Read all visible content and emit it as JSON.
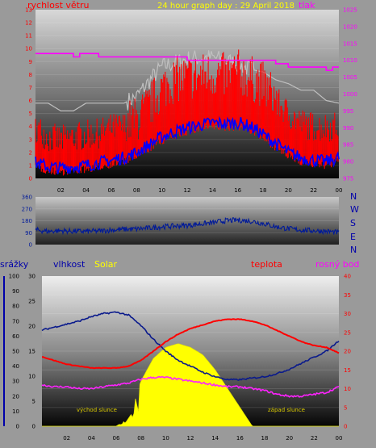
{
  "colors": {
    "wind": "#ff0000",
    "gust": "#0000ff",
    "pressure": "#ff00ff",
    "history": "#c0c0c0",
    "direction": "#001a99",
    "humidity": "#0a1a8c",
    "temperature": "#ff0000",
    "dewpoint": "#ff22ff",
    "solar": "#ffff00",
    "rain_axis": "#0000aa",
    "title": "#ffff00",
    "sun_label": "#d8c800",
    "compass": "#0000aa",
    "tick_dark": "#000000"
  },
  "chart_data": [
    {
      "type": "line",
      "title": "24 hour graph day : 29 April 2018",
      "left_label": "rychlost větru",
      "right_label": "tlak",
      "x_ticks": [
        "02",
        "04",
        "06",
        "08",
        "10",
        "12",
        "14",
        "16",
        "18",
        "20",
        "22",
        "00"
      ],
      "x": [
        0,
        1,
        2,
        3,
        4,
        5,
        6,
        7,
        8,
        9,
        10,
        11,
        12,
        13,
        14,
        15,
        16,
        17,
        18,
        19,
        20,
        21,
        22,
        23,
        24
      ],
      "y_left_range": [
        0,
        13
      ],
      "y_left_ticks": [
        "0",
        "1",
        "2",
        "3",
        "4",
        "5",
        "6",
        "7",
        "8",
        "9",
        "10",
        "11",
        "12",
        "13"
      ],
      "y_right_range": [
        975,
        1025
      ],
      "y_right_ticks": [
        "975",
        "980",
        "985",
        "990",
        "995",
        "1000",
        "1005",
        "1010",
        "1015",
        "1020",
        "1025"
      ],
      "grid": true,
      "series": [
        {
          "key": "wind_max",
          "axis": "left",
          "values": [
            3.5,
            2.7,
            2.5,
            2.7,
            2.9,
            3.0,
            3.4,
            3.5,
            3.8,
            4.8,
            6.2,
            6.9,
            7.0,
            7.2,
            7.3,
            7.2,
            7.5,
            7.0,
            6.5,
            5.5,
            4.5,
            3.8,
            3.5,
            3.5,
            3.6
          ]
        },
        {
          "key": "wind_avg",
          "axis": "left",
          "values": [
            1.2,
            0.9,
            0.8,
            0.9,
            1.0,
            1.2,
            1.4,
            1.6,
            2.0,
            2.6,
            3.2,
            3.6,
            3.9,
            4.1,
            4.3,
            4.2,
            4.3,
            4.0,
            3.4,
            2.7,
            2.0,
            1.6,
            1.4,
            1.3,
            1.6
          ]
        },
        {
          "key": "pressure",
          "axis": "right",
          "values": [
            1012,
            1012,
            1012,
            1011,
            1012,
            1011,
            1011,
            1011,
            1011,
            1011,
            1011,
            1011,
            1010,
            1010,
            1010,
            1010,
            1010,
            1010,
            1010,
            1009,
            1008,
            1008,
            1008,
            1007,
            1008
          ]
        },
        {
          "key": "history",
          "axis": "left",
          "values": [
            5.8,
            5.8,
            5.2,
            5.2,
            5.8,
            5.8,
            5.8,
            5.8,
            6.3,
            7.5,
            8.6,
            8.9,
            9.2,
            9.3,
            9.3,
            9.1,
            8.8,
            8.4,
            8.2,
            7.6,
            7.3,
            6.8,
            6.8,
            6.0,
            5.8
          ]
        }
      ]
    },
    {
      "type": "line",
      "y_ticks": [
        "0",
        "90",
        "180",
        "270",
        "360"
      ],
      "y_range": [
        0,
        360
      ],
      "compass": [
        "N",
        "W",
        "S",
        "E",
        "N"
      ],
      "grid": true,
      "series": [
        {
          "key": "direction",
          "values": [
            110,
            100,
            105,
            100,
            100,
            102,
            110,
            115,
            118,
            125,
            135,
            140,
            145,
            155,
            165,
            180,
            185,
            178,
            160,
            135,
            120,
            110,
            105,
            100,
            90
          ]
        }
      ]
    },
    {
      "type": "line",
      "labels": {
        "rain": "srážky",
        "humidity": "vlhkost",
        "solar": "Solar",
        "temperature": "teplota",
        "dewpoint": "rosný bod"
      },
      "rain_ticks": [
        "0",
        "10",
        "20",
        "30",
        "40",
        "50",
        "60",
        "70",
        "80",
        "90",
        "100"
      ],
      "humidity_ticks": [
        "0",
        "5",
        "10",
        "15",
        "20",
        "25",
        "30"
      ],
      "temperature_ticks": [
        "0",
        "5",
        "10",
        "15",
        "20",
        "25",
        "30",
        "35",
        "40"
      ],
      "rain_range": [
        0,
        100
      ],
      "humidity_range": [
        0,
        30
      ],
      "temperature_range": [
        0,
        40
      ],
      "x_ticks": [
        "02",
        "04",
        "06",
        "08",
        "10",
        "12",
        "14",
        "16",
        "18",
        "20",
        "22",
        "00"
      ],
      "sunrise_label": "východ slunce",
      "sunset_label": "západ slunce",
      "grid": true,
      "series": [
        {
          "key": "humidity",
          "axis": "rain",
          "values": [
            64,
            66,
            68,
            70,
            73,
            75,
            76,
            74,
            67,
            58,
            50,
            44,
            40,
            36,
            33,
            31,
            31,
            32,
            33,
            35,
            38,
            42,
            46,
            50,
            57
          ]
        },
        {
          "key": "temperature",
          "axis": "temperature",
          "values": [
            18.5,
            17.5,
            16.5,
            16.0,
            15.5,
            15.5,
            15.5,
            16.0,
            17.5,
            20.0,
            22.5,
            24.5,
            26.0,
            27.0,
            28.0,
            28.5,
            28.5,
            28.0,
            27.0,
            25.5,
            24.0,
            22.5,
            21.5,
            21.0,
            19.5
          ]
        },
        {
          "key": "dewpoint",
          "axis": "temperature",
          "values": [
            11.0,
            10.5,
            10.5,
            10.0,
            10.0,
            10.5,
            11.0,
            11.5,
            12.5,
            13.0,
            13.0,
            12.5,
            12.0,
            11.5,
            11.0,
            10.5,
            10.5,
            10.0,
            9.5,
            8.5,
            8.0,
            8.0,
            8.5,
            9.0,
            10.5
          ]
        },
        {
          "key": "solar",
          "axis": "temperature",
          "values": [
            0,
            0,
            0,
            0,
            0,
            0,
            0,
            2,
            12,
            18,
            21,
            22,
            21,
            19,
            15,
            10,
            5,
            0,
            0,
            0,
            0,
            0,
            0,
            0,
            0
          ]
        }
      ]
    }
  ]
}
